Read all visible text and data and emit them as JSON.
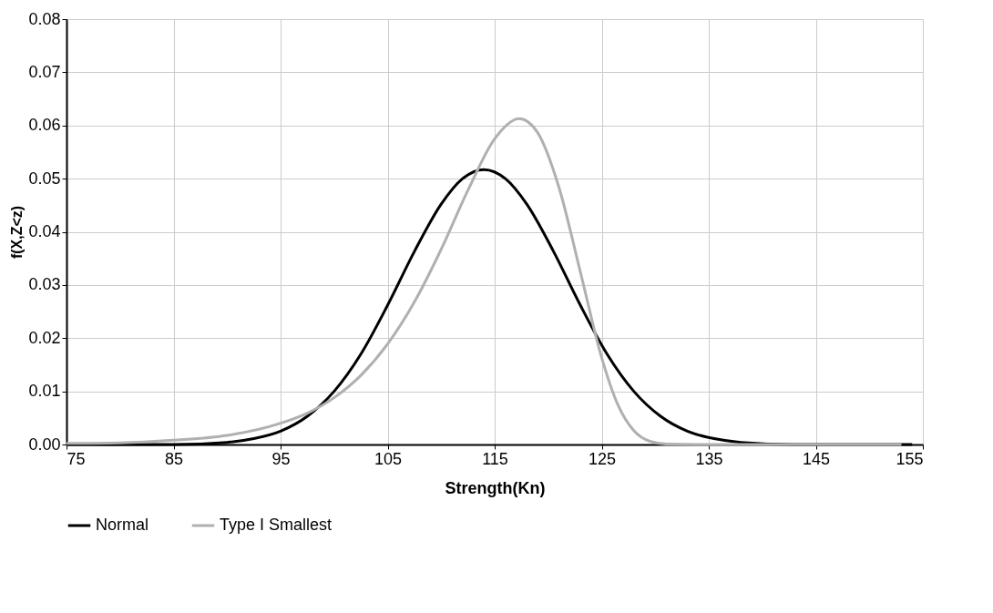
{
  "chart_data": {
    "type": "line",
    "xlabel": "Strength(Kn)",
    "ylabel": "f(X,Z<z)",
    "xlim": [
      75,
      155
    ],
    "xticks": [
      75,
      85,
      95,
      105,
      115,
      125,
      135,
      145,
      155
    ],
    "ylim": [
      0,
      0.08
    ],
    "yticks": [
      {
        "value": 0,
        "label": "0.00"
      },
      0.01,
      0.02,
      0.03,
      0.04,
      0.05,
      0.06,
      0.07,
      0.08
    ],
    "grid": true,
    "legend": "bottom",
    "marker": "none",
    "line_style": "solid",
    "series": [
      {
        "name": "Normal",
        "color": "#000000",
        "x": [
          75,
          80,
          85,
          90,
          92.5,
          95,
          97.5,
          100,
          102.5,
          105,
          107.5,
          110,
          112,
          114,
          116,
          118,
          120.5,
          123,
          125.5,
          128,
          130.5,
          133,
          135.5,
          138,
          143,
          148,
          154
        ],
        "values": [
          0,
          0,
          0,
          0.0004,
          0.0011,
          0.0025,
          0.0053,
          0.01,
          0.017,
          0.0262,
          0.0363,
          0.0452,
          0.05,
          0.0517,
          0.05,
          0.0452,
          0.0363,
          0.0262,
          0.017,
          0.01,
          0.0053,
          0.0025,
          0.0011,
          0.0004,
          0,
          0,
          0
        ]
      },
      {
        "name": "Type I Smallest",
        "color": "#b0b0b0",
        "x": [
          75,
          80,
          85,
          90,
          95,
          97.5,
          100,
          102.5,
          105,
          107.5,
          110,
          112.5,
          115,
          117.3,
          119,
          121,
          123,
          125,
          126.5,
          128,
          129.5,
          131,
          135,
          153
        ],
        "values": [
          0.0002,
          0.0003,
          0.0008,
          0.0017,
          0.004,
          0.0059,
          0.0088,
          0.013,
          0.0189,
          0.0268,
          0.0367,
          0.0478,
          0.0575,
          0.0613,
          0.0587,
          0.0484,
          0.0325,
          0.0163,
          0.0075,
          0.0026,
          0.0006,
          0.0001,
          0,
          0
        ]
      }
    ]
  }
}
